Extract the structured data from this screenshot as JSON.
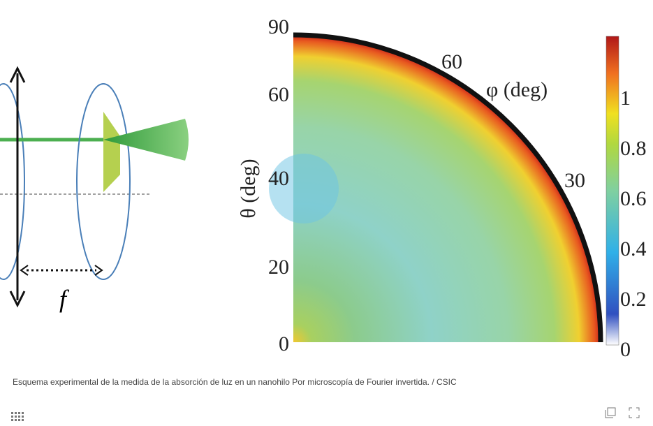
{
  "figure": {
    "schematic": {
      "focal_label": "f"
    },
    "polar_map": {
      "theta_axis_label": "θ (deg)",
      "theta_ticks": [
        "0",
        "20",
        "40",
        "60",
        "90"
      ],
      "phi_axis_label": "φ (deg)",
      "phi_ticks": [
        "60",
        "30"
      ],
      "colorbar_ticks": [
        "0",
        "0.2",
        "0.4",
        "0.6",
        "0.8",
        "1"
      ]
    }
  },
  "caption": "Esquema experimental de la medida de la absorción de luz en un nanohilo Por microscopía de Fourier invertida. / CSIC"
}
